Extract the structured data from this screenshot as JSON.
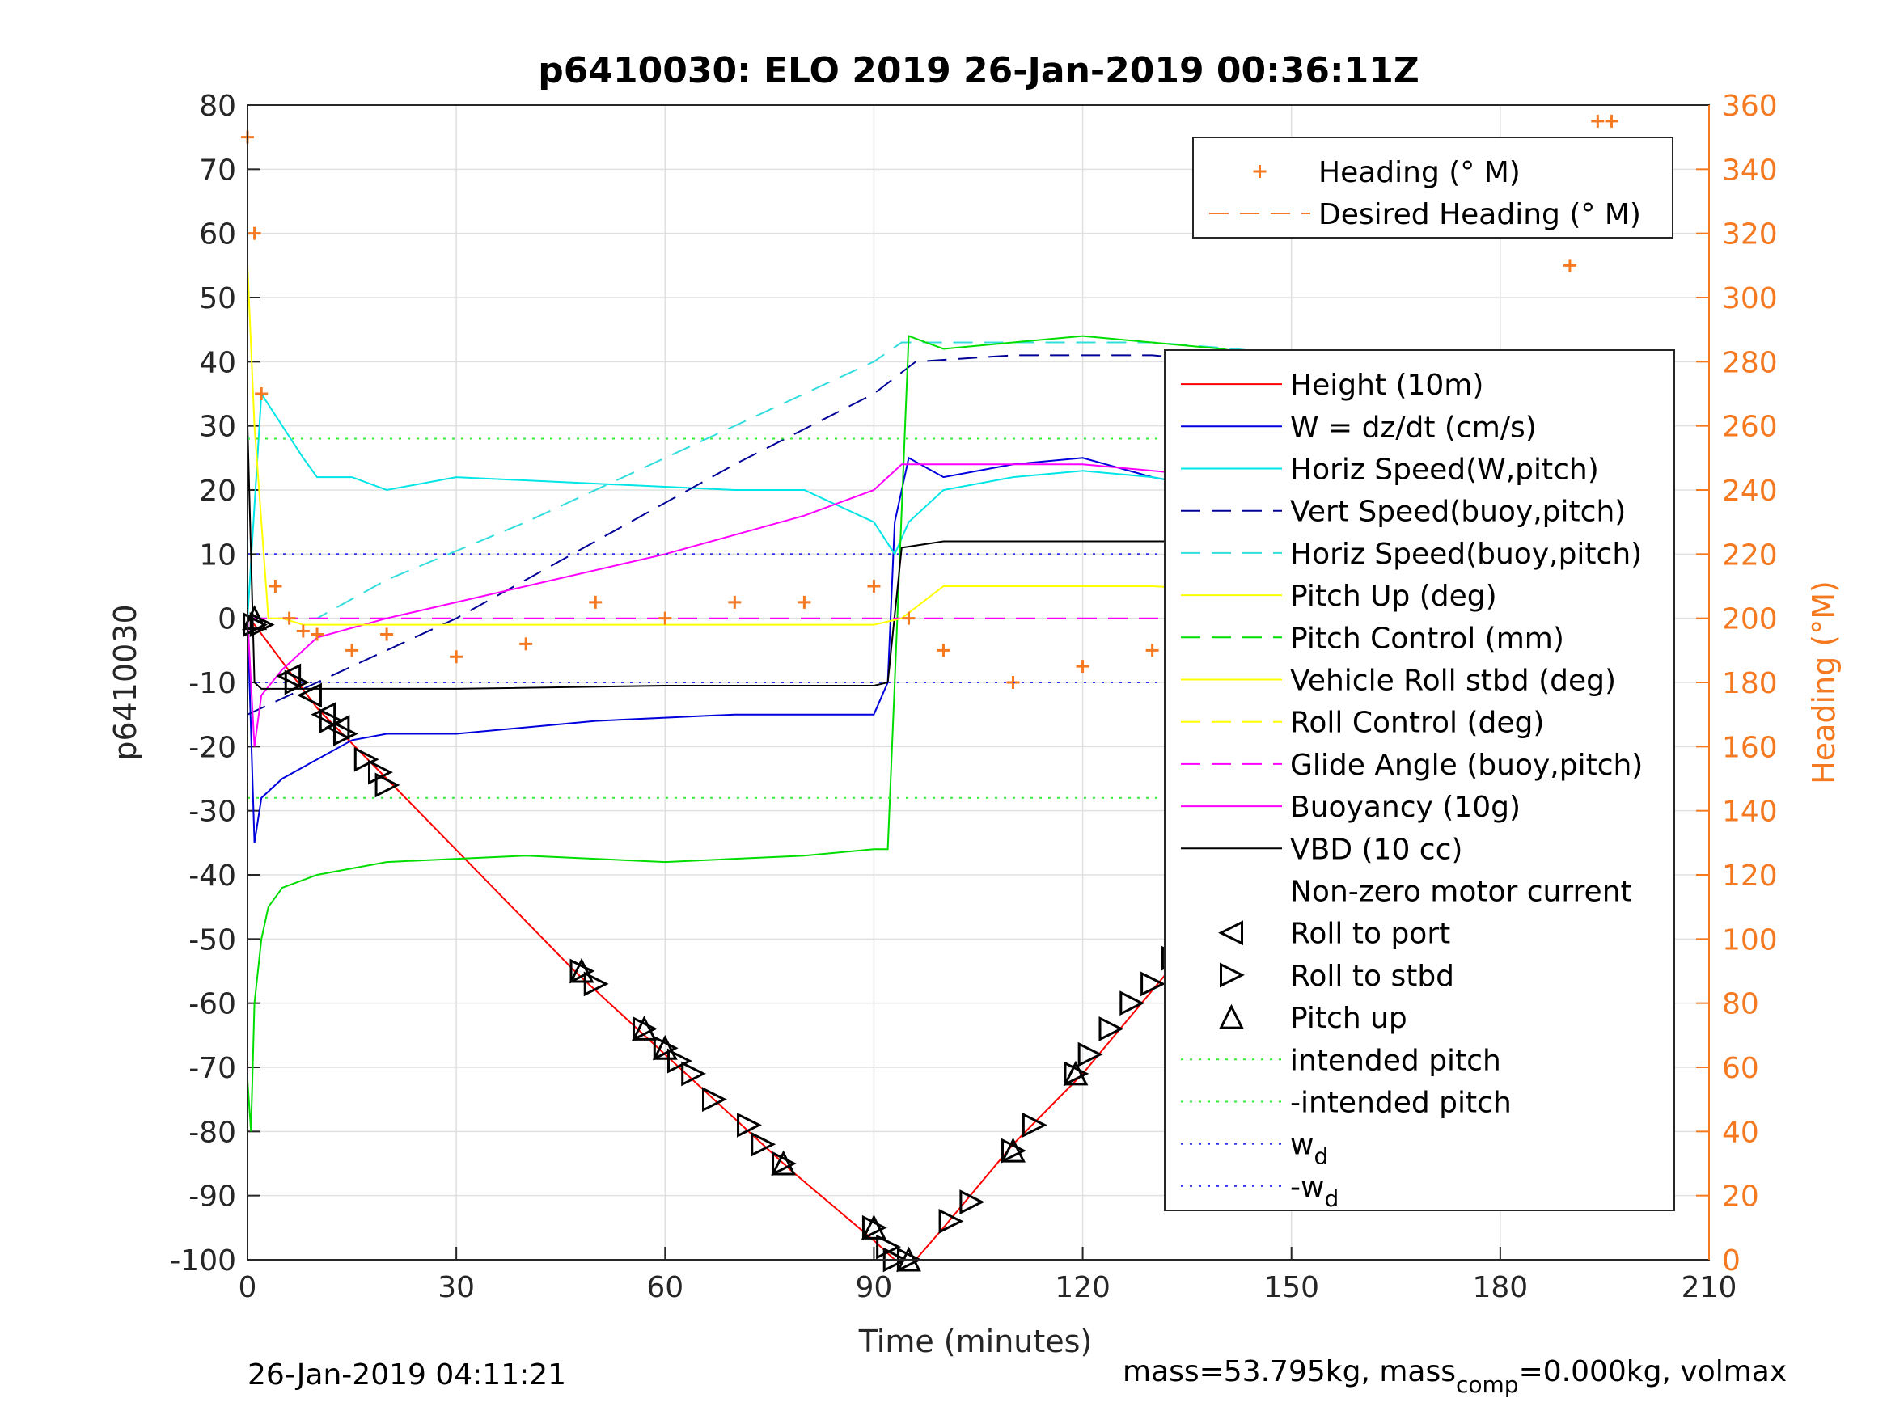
{
  "chart_data": {
    "type": "line",
    "title": "p6410030: ELO 2019 26-Jan-2019 00:36:11Z",
    "xlabel": "Time (minutes)",
    "ylabel": "p6410030",
    "y2label": "Heading (°M)",
    "xlim": [
      0,
      210
    ],
    "ylim": [
      -100,
      80
    ],
    "y2lim": [
      0,
      360
    ],
    "xticks": [
      "0",
      "30",
      "60",
      "90",
      "120",
      "150",
      "180",
      "210"
    ],
    "yticks": [
      "80",
      "70",
      "60",
      "50",
      "40",
      "30",
      "20",
      "10",
      "0",
      "-10",
      "-20",
      "-30",
      "-40",
      "-50",
      "-60",
      "-70",
      "-80",
      "-90",
      "-100"
    ],
    "y2ticks": [
      "360",
      "340",
      "320",
      "300",
      "280",
      "260",
      "240",
      "220",
      "200",
      "180",
      "160",
      "140",
      "120",
      "100",
      "80",
      "60",
      "40",
      "20",
      "0"
    ],
    "grid": true,
    "footer_left": "26-Jan-2019 04:11:21",
    "footer_right": "mass=53.795kg, mass",
    "footer_right_sub": "comp",
    "footer_right_tail": "=0.000kg, volmax",
    "colors": {
      "heading": "#f47920",
      "height": "#ff0000",
      "w": "#0000dd",
      "horiz_w": "#00e5e5",
      "vert_buoy": "#000099",
      "horiz_buoy": "#33dddd",
      "pitch": "#ffff00",
      "pitch_control": "#00dd00",
      "glide": "#ff00ff",
      "vbd": "#000000",
      "intended": "#33ee33",
      "wd": "#3333ee"
    },
    "legend_heading": [
      {
        "label": "Heading (° M)",
        "style": "plus",
        "color": "#f47920"
      },
      {
        "label": "Desired Heading (° M)",
        "style": "dashed",
        "color": "#f47920"
      }
    ],
    "legend_main": [
      {
        "label": "Height (10m)",
        "style": "solid",
        "color": "#ff0000"
      },
      {
        "label": "W = dz/dt (cm/s)",
        "style": "solid",
        "color": "#0000dd"
      },
      {
        "label": "Horiz Speed(W,pitch)",
        "style": "solid",
        "color": "#00e5e5"
      },
      {
        "label": "Vert Speed(buoy,pitch)",
        "style": "dashed",
        "color": "#000099"
      },
      {
        "label": "Horiz Speed(buoy,pitch)",
        "style": "dashed",
        "color": "#33dddd"
      },
      {
        "label": "Pitch Up (deg)",
        "style": "solid",
        "color": "#ffff00"
      },
      {
        "label": "Pitch Control (mm)",
        "style": "dashed",
        "color": "#00dd00"
      },
      {
        "label": "Vehicle Roll stbd (deg)",
        "style": "solid",
        "color": "#ffff00"
      },
      {
        "label": "Roll Control (deg)",
        "style": "dashed",
        "color": "#ffff00"
      },
      {
        "label": "Glide Angle (buoy,pitch)",
        "style": "dashed",
        "color": "#ff00ff"
      },
      {
        "label": "Buoyancy (10g)",
        "style": "solid",
        "color": "#ff00ff"
      },
      {
        "label": "VBD (10 cc)",
        "style": "solid",
        "color": "#000000"
      },
      {
        "label": "Non-zero motor current",
        "style": "none",
        "color": "#000000"
      },
      {
        "label": "Roll to port",
        "style": "tri-left",
        "color": "#000000"
      },
      {
        "label": "Roll to stbd",
        "style": "tri-right",
        "color": "#000000"
      },
      {
        "label": "Pitch up",
        "style": "tri-up",
        "color": "#000000"
      },
      {
        "label": "intended pitch",
        "style": "dotted",
        "color": "#33ee33"
      },
      {
        "label": "-intended pitch",
        "style": "dotted",
        "color": "#33ee33"
      },
      {
        "label": "w",
        "sub": "d",
        "prefix": "",
        "style": "dotted",
        "color": "#3333ee"
      },
      {
        "label": "w",
        "sub": "d",
        "prefix": "-",
        "style": "dotted",
        "color": "#3333ee"
      }
    ],
    "series": [
      {
        "name": "Height (10m)",
        "x": [
          0,
          1,
          10,
          20,
          47,
          60,
          78,
          90,
          93,
          96,
          100,
          110,
          120,
          140,
          160,
          170,
          180,
          190,
          196
        ],
        "y": [
          0,
          -1,
          -14,
          -25,
          -55,
          -68,
          -86,
          -97,
          -100,
          -100,
          -95,
          -82,
          -71,
          -45,
          -22,
          -13,
          -6,
          -3,
          -1
        ]
      },
      {
        "name": "W = dz/dt (cm/s)",
        "x": [
          0,
          1,
          2,
          5,
          10,
          15,
          20,
          30,
          50,
          70,
          80,
          90,
          92,
          93,
          95,
          100,
          110,
          120,
          130,
          140,
          150,
          160,
          170,
          180,
          185,
          190,
          195
        ],
        "y": [
          0,
          -35,
          -28,
          -25,
          -22,
          -19,
          -18,
          -18,
          -16,
          -15,
          -15,
          -15,
          -10,
          15,
          25,
          22,
          24,
          25,
          22,
          20,
          19,
          17,
          15,
          5,
          5,
          5,
          0
        ]
      },
      {
        "name": "Horiz Speed(W,pitch)",
        "x": [
          0,
          2,
          5,
          8,
          10,
          15,
          20,
          30,
          50,
          70,
          80,
          90,
          93,
          95,
          100,
          110,
          120,
          130,
          140,
          150,
          160,
          170,
          180,
          190,
          195
        ],
        "y": [
          0,
          35,
          30,
          25,
          22,
          22,
          20,
          22,
          21,
          20,
          20,
          15,
          10,
          15,
          20,
          22,
          23,
          22,
          20,
          19,
          18,
          17,
          20,
          5,
          35
        ]
      },
      {
        "name": "Vert Speed(buoy,pitch)",
        "x": [
          0,
          10,
          20,
          30,
          50,
          70,
          90,
          96,
          110,
          130,
          140,
          142,
          150,
          170,
          180,
          190,
          195
        ],
        "y": [
          -15,
          -10,
          -5,
          0,
          12,
          24,
          35,
          40,
          41,
          41,
          40,
          40,
          40,
          37,
          35,
          34,
          34
        ]
      },
      {
        "name": "Horiz Speed(buoy,pitch)",
        "x": [
          0,
          10,
          20,
          40,
          60,
          80,
          90,
          94,
          110,
          130,
          142,
          150,
          170,
          180,
          190,
          195
        ],
        "y": [
          0,
          0,
          6,
          15,
          25,
          35,
          40,
          43,
          43,
          43,
          42,
          41,
          38,
          36,
          34,
          34
        ]
      },
      {
        "name": "Pitch Control (mm)",
        "x": [
          0,
          0.5,
          1,
          2,
          3,
          5,
          10,
          20,
          40,
          60,
          80,
          90,
          92,
          93,
          95,
          100,
          110,
          120,
          140,
          150,
          160,
          170,
          180,
          190,
          195
        ],
        "y": [
          -72,
          -80,
          -60,
          -50,
          -45,
          -42,
          -40,
          -38,
          -37,
          -38,
          -37,
          -36,
          -36,
          -10,
          44,
          42,
          43,
          44,
          42,
          40,
          37,
          35,
          32,
          28,
          30
        ]
      },
      {
        "name": "Buoyancy (10g)",
        "x": [
          0,
          1,
          2,
          5,
          10,
          20,
          40,
          60,
          80,
          90,
          94,
          100,
          120,
          140,
          160,
          180,
          190,
          195
        ],
        "y": [
          0,
          -20,
          -12,
          -8,
          -3,
          0,
          5,
          10,
          16,
          20,
          24,
          24,
          24,
          22,
          20,
          18,
          14,
          14
        ]
      },
      {
        "name": "VBD (10 cc)",
        "x": [
          0,
          1,
          2,
          30,
          60,
          90,
          92,
          94,
          100,
          130,
          170,
          180,
          185,
          195
        ],
        "y": [
          30,
          -10,
          -11,
          -11,
          -10.5,
          -10.5,
          -10,
          11,
          12,
          12,
          12,
          13,
          21,
          21
        ]
      },
      {
        "name": "Glide Angle (buoy,pitch)",
        "x": [
          0,
          195
        ],
        "y": [
          0,
          0
        ]
      },
      {
        "name": "Pitch Up (deg)",
        "x": [
          0,
          1,
          3,
          5,
          8,
          10,
          30,
          50,
          70,
          90,
          94,
          100,
          130,
          150,
          170,
          180,
          190,
          195
        ],
        "y": [
          55,
          30,
          0,
          0,
          -1,
          -1,
          -1,
          -1,
          -1,
          -1,
          0,
          5,
          5,
          4,
          3,
          3,
          2,
          2
        ]
      },
      {
        "name": "Heading (° M)",
        "x": [
          0,
          1,
          2,
          4,
          6,
          8,
          10,
          15,
          20,
          30,
          40,
          50,
          60,
          70,
          80,
          90,
          95,
          100,
          110,
          120,
          130,
          140,
          150,
          160,
          170,
          175,
          180,
          185,
          190,
          192,
          194,
          196
        ],
        "y": [
          350,
          320,
          270,
          210,
          200,
          196,
          195,
          190,
          195,
          188,
          192,
          205,
          200,
          205,
          205,
          210,
          200,
          190,
          180,
          185,
          190,
          192,
          185,
          180,
          170,
          150,
          200,
          230,
          310,
          345,
          355,
          355
        ]
      },
      {
        "name": "intended pitch",
        "x": [
          0,
          196
        ],
        "y": [
          28,
          28
        ]
      },
      {
        "name": "-intended pitch",
        "x": [
          0,
          196
        ],
        "y": [
          -28,
          -28
        ]
      },
      {
        "name": "wd",
        "x": [
          0,
          196
        ],
        "y": [
          10,
          10
        ]
      },
      {
        "name": "-wd",
        "x": [
          0,
          196
        ],
        "y": [
          -10,
          -10
        ]
      }
    ],
    "markers": {
      "roll_port": [
        [
          6,
          -9
        ],
        [
          9,
          -12
        ],
        [
          11,
          -15
        ],
        [
          13,
          -17
        ],
        [
          166,
          -16
        ],
        [
          170,
          -13
        ],
        [
          172,
          -12
        ],
        [
          175,
          -10
        ],
        [
          178,
          -8
        ],
        [
          181,
          -6
        ],
        [
          184,
          -5
        ]
      ],
      "roll_stbd": [
        [
          1,
          -1
        ],
        [
          2,
          -1
        ],
        [
          7,
          -10
        ],
        [
          12,
          -16
        ],
        [
          14,
          -18
        ],
        [
          17,
          -22
        ],
        [
          19,
          -24
        ],
        [
          20,
          -26
        ],
        [
          48,
          -55
        ],
        [
          50,
          -57
        ],
        [
          57,
          -64
        ],
        [
          60,
          -67
        ],
        [
          62,
          -69
        ],
        [
          64,
          -71
        ],
        [
          67,
          -75
        ],
        [
          72,
          -79
        ],
        [
          74,
          -82
        ],
        [
          77,
          -85
        ],
        [
          90,
          -95
        ],
        [
          92,
          -98
        ],
        [
          93,
          -100
        ],
        [
          95,
          -100
        ],
        [
          101,
          -94
        ],
        [
          104,
          -91
        ],
        [
          110,
          -83
        ],
        [
          113,
          -79
        ],
        [
          119,
          -71
        ],
        [
          121,
          -68
        ],
        [
          124,
          -64
        ],
        [
          127,
          -60
        ],
        [
          130,
          -57
        ],
        [
          133,
          -53
        ],
        [
          135,
          -50
        ],
        [
          139,
          -46
        ],
        [
          142,
          -43
        ],
        [
          144,
          -40
        ],
        [
          153,
          -28
        ],
        [
          158,
          -23
        ],
        [
          194,
          -1
        ],
        [
          195,
          -1
        ]
      ],
      "pitch_up": [
        [
          1,
          0
        ],
        [
          48,
          -55
        ],
        [
          57,
          -64
        ],
        [
          60,
          -67
        ],
        [
          77,
          -85
        ],
        [
          90,
          -95
        ],
        [
          95,
          -100
        ],
        [
          110,
          -83
        ],
        [
          119,
          -71
        ],
        [
          142,
          -43
        ]
      ]
    }
  }
}
